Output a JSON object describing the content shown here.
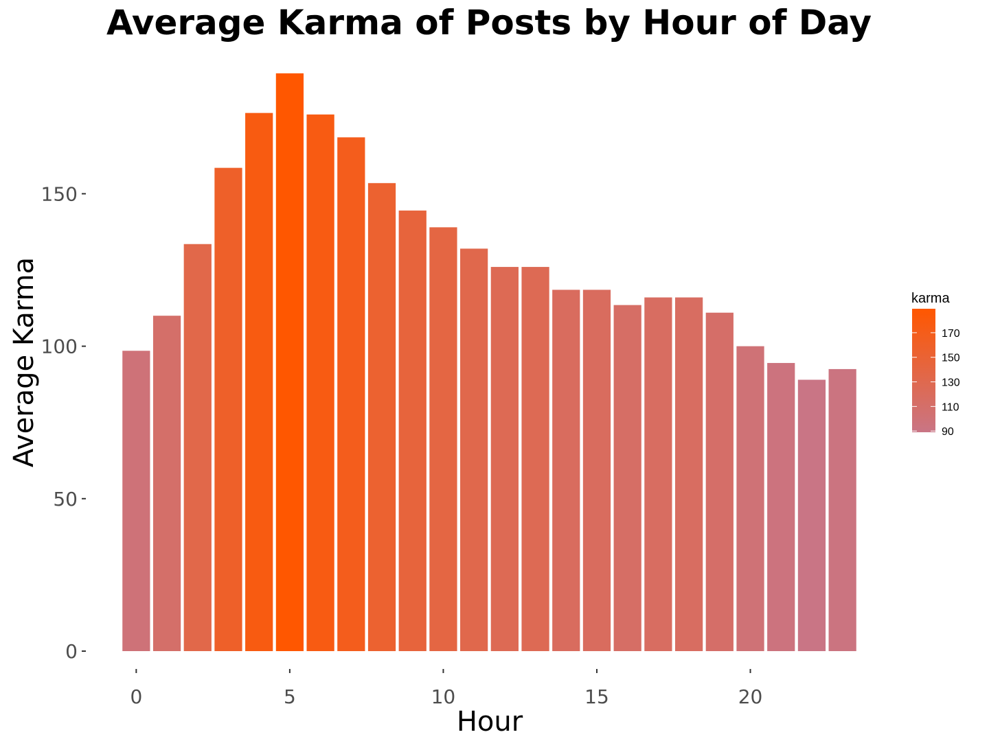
{
  "chart_data": {
    "type": "bar",
    "title": "Average Karma of Posts by Hour of Day",
    "xlabel": "Hour",
    "ylabel": "Average Karma",
    "x": [
      0,
      1,
      2,
      3,
      4,
      5,
      6,
      7,
      8,
      9,
      10,
      11,
      12,
      13,
      14,
      15,
      16,
      17,
      18,
      19,
      20,
      21,
      22,
      23
    ],
    "values": [
      98.5,
      110,
      133.5,
      158.5,
      176.5,
      189.5,
      176,
      168.5,
      153.5,
      144.5,
      139,
      132,
      126,
      126,
      118.5,
      118.5,
      113.5,
      116,
      116,
      111,
      100,
      94.5,
      89,
      92.5
    ],
    "xticks": [
      "0",
      "5",
      "10",
      "15",
      "20"
    ],
    "yticks": [
      "0",
      "50",
      "100",
      "150"
    ],
    "ylim": [
      0,
      195
    ],
    "xlim": [
      -0.5,
      23.5
    ],
    "grid": false,
    "legend": {
      "title": "karma",
      "position": "right",
      "labels": [
        "170",
        "150",
        "130",
        "110",
        "90"
      ],
      "low_color": "#c97585",
      "high_color": "#ff5700",
      "low_value": 89,
      "high_value": 189.5
    }
  }
}
